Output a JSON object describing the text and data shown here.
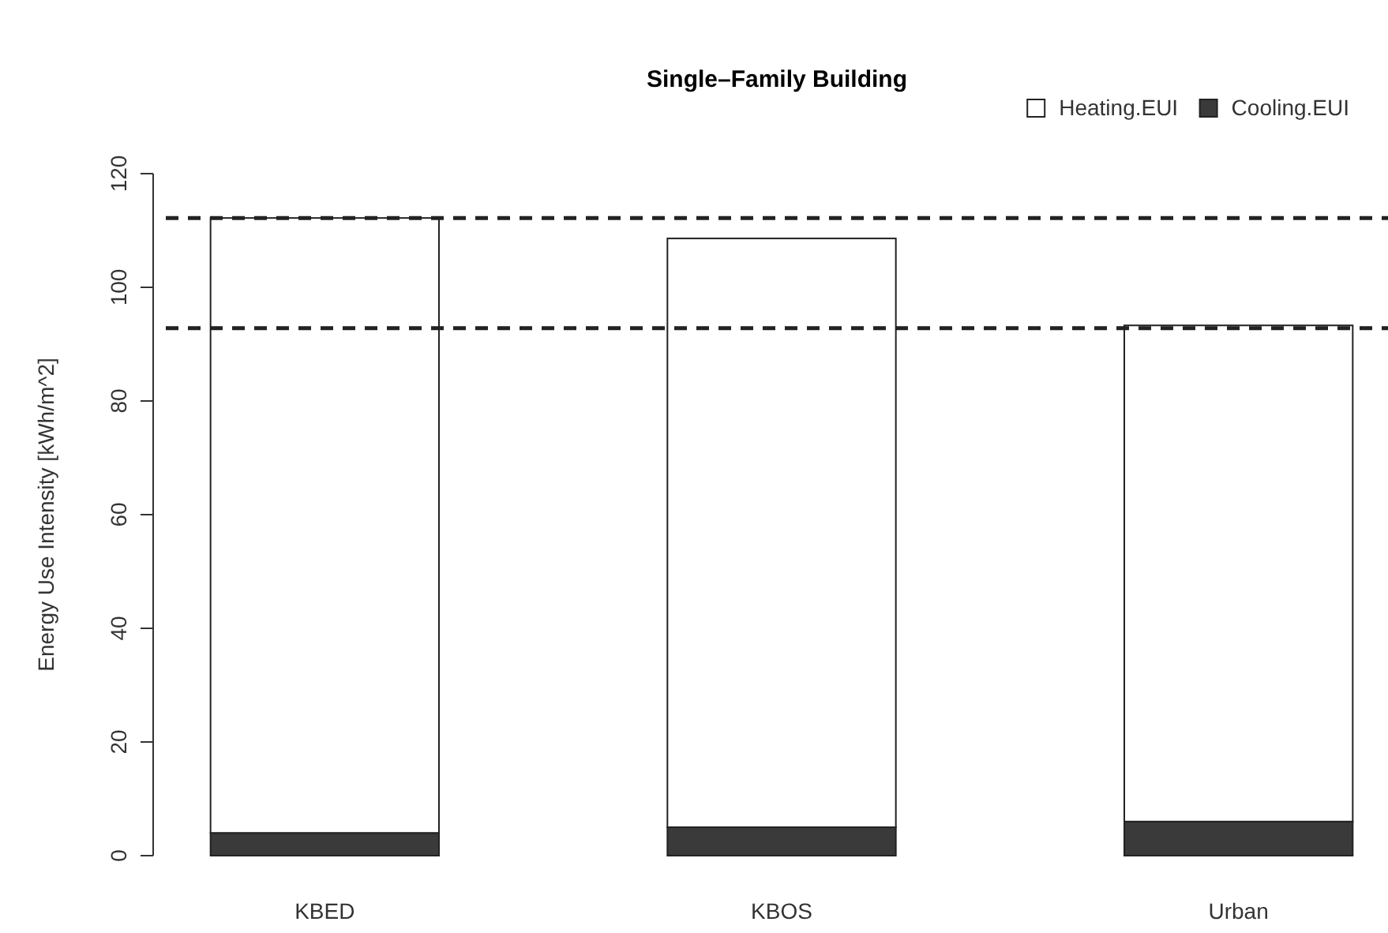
{
  "chart_data": {
    "type": "bar",
    "title": "Single–Family Building",
    "ylabel": "Energy Use Intensity [kWh/m^2]",
    "categories": [
      "KBED",
      "KBOS",
      "Urban"
    ],
    "stacked": true,
    "series": [
      {
        "name": "Cooling.EUI",
        "color": "#3a3a3a",
        "values": [
          4,
          5,
          6
        ]
      },
      {
        "name": "Heating.EUI",
        "color": "#ffffff",
        "values": [
          108.2,
          103.6,
          87.3
        ]
      }
    ],
    "ylim": [
      0,
      120
    ],
    "yticks": [
      0,
      20,
      40,
      60,
      80,
      100,
      120
    ],
    "ref_lines": [
      {
        "axis": "y",
        "value": 112.2,
        "line_style": "dashed"
      },
      {
        "axis": "y",
        "value": 92.8,
        "line_style": "dashed"
      }
    ],
    "legend": "top right",
    "grid": false
  }
}
